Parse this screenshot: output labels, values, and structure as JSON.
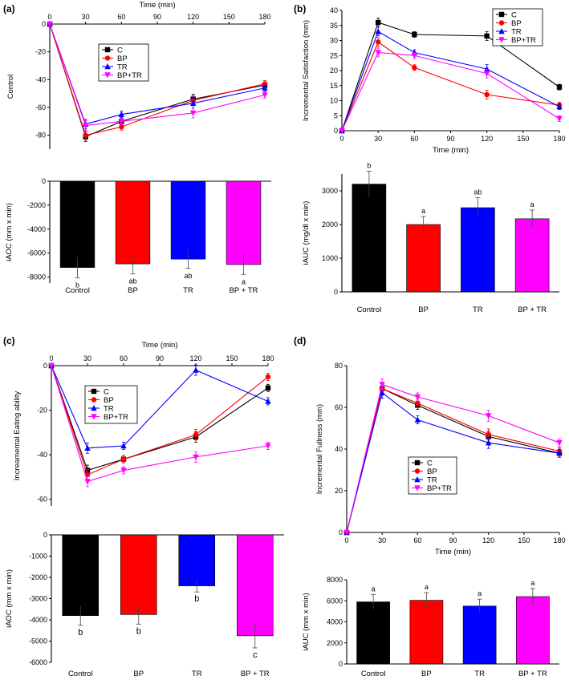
{
  "panels": [
    {
      "letter": "(a)"
    },
    {
      "letter": "(b)"
    },
    {
      "letter": "(c)"
    },
    {
      "letter": "(d)"
    }
  ],
  "colors": {
    "C": "#000000",
    "BP": "#ff0000",
    "TR": "#0000ff",
    "BP+TR": "#ff00ff"
  },
  "chart_data": [
    {
      "id": "a-line",
      "type": "line",
      "xlabel": "Time (min)",
      "ylabel": "Control",
      "xlim": [
        0,
        180
      ],
      "ylim": [
        -90,
        0
      ],
      "xticks": [
        0,
        30,
        60,
        90,
        120,
        150,
        180
      ],
      "yticks": [
        0,
        -20,
        -40,
        -60,
        -80
      ],
      "xaxis_position": "top",
      "legend_position": "center",
      "x": [
        0,
        30,
        60,
        120,
        180
      ],
      "series": [
        {
          "name": "C",
          "values": [
            0,
            -81,
            -70,
            -54,
            -44
          ]
        },
        {
          "name": "BP",
          "values": [
            0,
            -80,
            -74,
            -55,
            -43
          ]
        },
        {
          "name": "TR",
          "values": [
            0,
            -72,
            -65,
            -57,
            -46
          ]
        },
        {
          "name": "BP+TR",
          "values": [
            0,
            -73,
            -70,
            -64,
            -51
          ]
        }
      ]
    },
    {
      "id": "a-bar",
      "type": "bar",
      "xlabel": "",
      "ylabel": "iAOC (mm x min)",
      "ylim": [
        -8500,
        0
      ],
      "yticks": [
        0,
        -2000,
        -4000,
        -6000,
        -8000
      ],
      "categories": [
        "Control",
        "BP",
        "TR",
        "BP + TR"
      ],
      "values": [
        -7200,
        -6900,
        -6500,
        -6950
      ],
      "letters": [
        "b",
        "ab",
        "ab",
        "a"
      ]
    },
    {
      "id": "b-line",
      "type": "line",
      "xlabel": "Time (min)",
      "ylabel": "Incremental Satisfaction (mm)",
      "xlim": [
        0,
        180
      ],
      "ylim": [
        0,
        40
      ],
      "xticks": [
        0,
        30,
        60,
        90,
        120,
        150,
        180
      ],
      "yticks": [
        0,
        5,
        10,
        15,
        20,
        25,
        30,
        35,
        40
      ],
      "legend_position": "top-right",
      "x": [
        0,
        30,
        60,
        120,
        180
      ],
      "series": [
        {
          "name": "C",
          "values": [
            0,
            36,
            32,
            31.5,
            14.5
          ]
        },
        {
          "name": "BP",
          "values": [
            0,
            29.5,
            21,
            12,
            8.5
          ]
        },
        {
          "name": "TR",
          "values": [
            0,
            33,
            26,
            20.5,
            8
          ]
        },
        {
          "name": "BP+TR",
          "values": [
            0,
            26,
            25,
            19,
            4
          ]
        }
      ]
    },
    {
      "id": "b-bar",
      "type": "bar",
      "xlabel": "",
      "ylabel": "iAUC (mg/dl x min)",
      "ylim": [
        0,
        3500
      ],
      "yticks": [
        0,
        1000,
        2000,
        3000
      ],
      "categories": [
        "Control",
        "BP",
        "TR",
        "BP + TR"
      ],
      "values": [
        3200,
        2000,
        2500,
        2170
      ],
      "letters": [
        "b",
        "a",
        "ab",
        "a"
      ]
    },
    {
      "id": "c-line",
      "type": "line",
      "xlabel": "Time (min)",
      "ylabel": "Increamental Eating ability",
      "xlim": [
        0,
        180
      ],
      "ylim": [
        -63,
        0
      ],
      "xticks": [
        0,
        30,
        60,
        90,
        120,
        150,
        180
      ],
      "yticks": [
        0,
        -20,
        -40,
        -60
      ],
      "xaxis_position": "top",
      "legend_position": "top-left",
      "x": [
        0,
        30,
        60,
        120,
        180
      ],
      "series": [
        {
          "name": "C",
          "values": [
            0,
            -47,
            -42,
            -32,
            -10
          ]
        },
        {
          "name": "BP",
          "values": [
            0,
            -49,
            -42,
            -31,
            -5
          ]
        },
        {
          "name": "TR",
          "values": [
            0,
            -37,
            -36,
            -2,
            -16
          ]
        },
        {
          "name": "BP+TR",
          "values": [
            0,
            -52,
            -47,
            -41,
            -36
          ]
        }
      ]
    },
    {
      "id": "c-bar",
      "type": "bar",
      "xlabel": "",
      "ylabel": "iAOC (mm x min)",
      "ylim": [
        -6000,
        0
      ],
      "yticks": [
        0,
        -1000,
        -2000,
        -3000,
        -4000,
        -5000,
        -6000
      ],
      "categories": [
        "Control",
        "BP",
        "TR",
        "BP + TR"
      ],
      "values": [
        -3800,
        -3750,
        -2400,
        -4750
      ],
      "letters": [
        "b",
        "b",
        "b",
        "c"
      ]
    },
    {
      "id": "d-line",
      "type": "line",
      "xlabel": "Time (min)",
      "ylabel": "Incremental Fullness (mm)",
      "xlim": [
        0,
        180
      ],
      "ylim": [
        0,
        80
      ],
      "xticks": [
        0,
        30,
        60,
        90,
        120,
        150,
        180
      ],
      "yticks": [
        0,
        20,
        40,
        60,
        80
      ],
      "legend_position": "bottom-left",
      "x": [
        0,
        30,
        60,
        120,
        180
      ],
      "series": [
        {
          "name": "C",
          "values": [
            0,
            69,
            61,
            46,
            38
          ]
        },
        {
          "name": "BP",
          "values": [
            0,
            69,
            62,
            47,
            39
          ]
        },
        {
          "name": "TR",
          "values": [
            0,
            67,
            54,
            43,
            38
          ]
        },
        {
          "name": "BP+TR",
          "values": [
            0,
            71,
            65,
            56,
            43
          ]
        }
      ]
    },
    {
      "id": "d-bar",
      "type": "bar",
      "xlabel": "",
      "ylabel": "iAUC (mm x min)",
      "ylim": [
        0,
        8000
      ],
      "yticks": [
        0,
        2000,
        4000,
        6000,
        8000
      ],
      "categories": [
        "Control",
        "BP",
        "TR",
        "BP + TR"
      ],
      "values": [
        5900,
        6050,
        5500,
        6400
      ],
      "letters": [
        "a",
        "a",
        "a",
        "a"
      ]
    }
  ]
}
